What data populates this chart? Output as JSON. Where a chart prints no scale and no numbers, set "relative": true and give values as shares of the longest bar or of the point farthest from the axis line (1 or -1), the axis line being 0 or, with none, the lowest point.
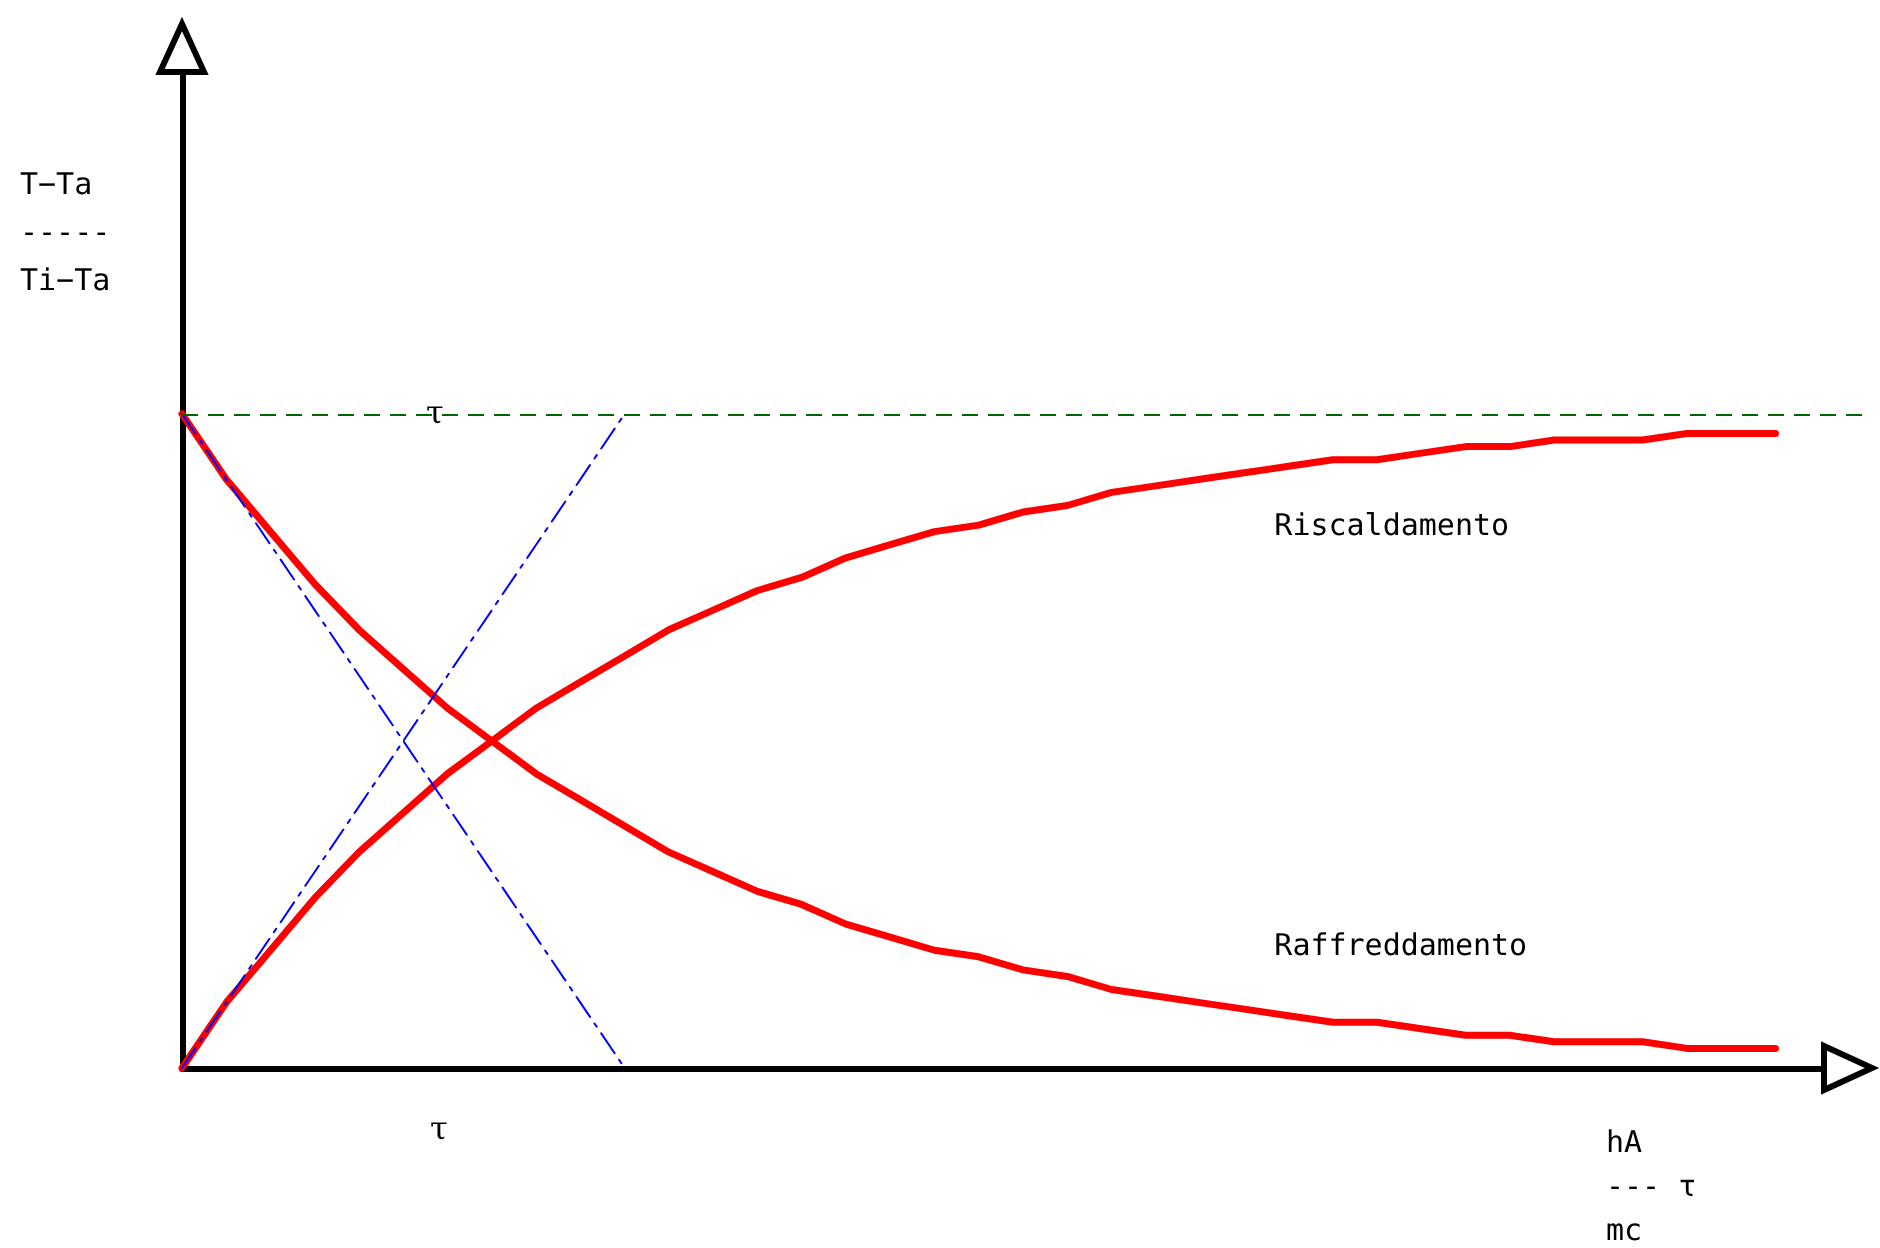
{
  "chart_data": {
    "type": "line",
    "relative": true,
    "ylabel": "T−Ta\n-----\nTi−Ta",
    "xlabel": "hA\n--- τ\nmc",
    "categories": [
      null,
      null,
      null,
      null,
      null,
      null,
      null,
      null,
      null,
      null,
      null,
      null,
      null,
      null,
      null,
      null,
      null,
      null,
      null,
      null,
      null,
      null,
      null,
      null,
      null,
      null,
      null,
      null,
      null,
      null,
      null,
      null,
      null,
      null,
      null,
      null,
      null,
      null,
      null
    ],
    "series": [
      {
        "name": "Riscaldamento",
        "color": "#ff0000",
        "values": [
          0,
          0.1,
          0.18,
          0.26,
          0.33,
          0.39,
          0.45,
          0.5,
          0.55,
          0.59,
          0.63,
          0.67,
          0.7,
          0.73,
          0.75,
          0.78,
          0.8,
          0.82,
          0.83,
          0.85,
          0.86,
          0.88,
          0.89,
          0.9,
          0.91,
          0.92,
          0.93,
          0.93,
          0.94,
          0.95,
          0.95,
          0.96,
          0.96,
          0.96,
          0.97,
          0.97,
          0.97,
          null,
          null
        ]
      },
      {
        "name": "Raffreddamento",
        "color": "#ff0000",
        "values": [
          1,
          0.9,
          0.82,
          0.74,
          0.67,
          0.61,
          0.55,
          0.5,
          0.45,
          0.41,
          0.37,
          0.33,
          0.3,
          0.27,
          0.25,
          0.22,
          0.2,
          0.18,
          0.17,
          0.15,
          0.14,
          0.12,
          0.11,
          0.1,
          0.09,
          0.08,
          0.07,
          0.07,
          0.06,
          0.05,
          0.05,
          0.04,
          0.04,
          0.04,
          0.03,
          0.03,
          0.03,
          null,
          null
        ]
      },
      {
        "color": "#0000ff",
        "line_style": "dashed",
        "values": [
          0,
          0.1,
          0.2,
          0.3,
          0.4,
          0.5,
          0.6,
          0.7,
          0.8,
          0.9,
          1,
          null,
          null,
          null,
          null,
          null,
          null,
          null,
          null,
          null,
          null,
          null,
          null,
          null,
          null,
          null,
          null,
          null,
          null,
          null,
          null,
          null,
          null,
          null,
          null,
          null,
          null,
          null,
          null
        ]
      },
      {
        "color": "#0000ff",
        "line_style": "dashed",
        "values": [
          1,
          0.9,
          0.8,
          0.7,
          0.6,
          0.5,
          0.4,
          0.3,
          0.2,
          0.1,
          0,
          null,
          null,
          null,
          null,
          null,
          null,
          null,
          null,
          null,
          null,
          null,
          null,
          null,
          null,
          null,
          null,
          null,
          null,
          null,
          null,
          null,
          null,
          null,
          null,
          null,
          null,
          null,
          null
        ]
      }
    ],
    "ref_lines": [
      {
        "axis": "y",
        "value": 1,
        "color": "#006600",
        "line_style": "dashed"
      }
    ],
    "annotations": [
      "τ",
      "τ"
    ],
    "legend": false,
    "grid": false,
    "marker": "none"
  }
}
